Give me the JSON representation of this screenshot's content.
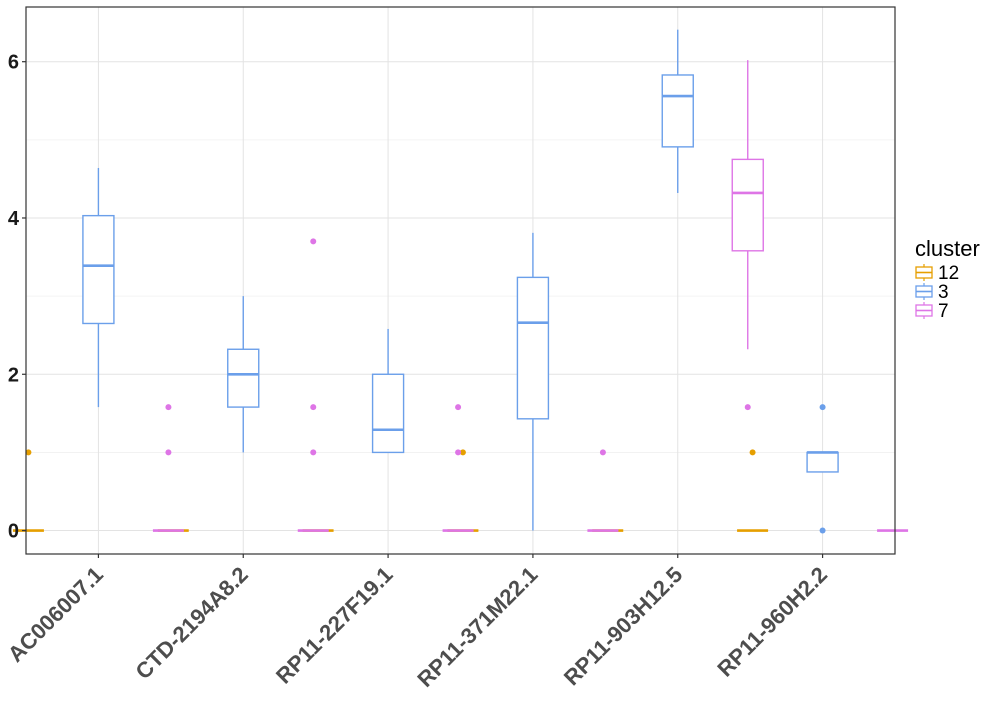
{
  "chart_data": {
    "type": "boxplot",
    "title": "",
    "xlabel": "",
    "ylabel": "",
    "ylim": [
      -0.3,
      6.7
    ],
    "y_ticks": [
      0,
      2,
      4,
      6
    ],
    "grid": true,
    "legend": {
      "title": "cluster",
      "position": "right"
    },
    "categories": [
      "AC006007.1",
      "CTD-2194A8.2",
      "RP11-227F19.1",
      "RP11-371M22.1",
      "RP11-903H12.5",
      "RP11-960H2.2"
    ],
    "series": [
      {
        "name": "12",
        "color": "#E69F00",
        "boxes": [
          {
            "category": "AC006007.1",
            "min": 0,
            "q1": 0,
            "median": 0,
            "q3": 0,
            "max": 0,
            "outliers": [
              1.0
            ]
          },
          {
            "category": "CTD-2194A8.2",
            "min": 0,
            "q1": 0,
            "median": 0,
            "q3": 0,
            "max": 0,
            "outliers": []
          },
          {
            "category": "RP11-227F19.1",
            "min": 0,
            "q1": 0,
            "median": 0,
            "q3": 0,
            "max": 0,
            "outliers": []
          },
          {
            "category": "RP11-371M22.1",
            "min": 0,
            "q1": 0,
            "median": 0,
            "q3": 0,
            "max": 0,
            "outliers": [
              1.0
            ]
          },
          {
            "category": "RP11-903H12.5",
            "min": 0,
            "q1": 0,
            "median": 0,
            "q3": 0,
            "max": 0,
            "outliers": []
          },
          {
            "category": "RP11-960H2.2",
            "min": 0,
            "q1": 0,
            "median": 0,
            "q3": 0,
            "max": 0,
            "outliers": [
              1.0
            ]
          }
        ]
      },
      {
        "name": "3",
        "color": "#6B9FEA",
        "boxes": [
          {
            "category": "AC006007.1",
            "min": 1.58,
            "q1": 2.65,
            "median": 3.39,
            "q3": 4.03,
            "max": 4.64,
            "outliers": []
          },
          {
            "category": "CTD-2194A8.2",
            "min": 1.0,
            "q1": 1.58,
            "median": 2.0,
            "q3": 2.32,
            "max": 3.0,
            "outliers": []
          },
          {
            "category": "RP11-227F19.1",
            "min": 1.0,
            "q1": 1.0,
            "median": 1.29,
            "q3": 2.0,
            "max": 2.58,
            "outliers": []
          },
          {
            "category": "RP11-371M22.1",
            "min": 0,
            "q1": 1.43,
            "median": 2.66,
            "q3": 3.24,
            "max": 3.81,
            "outliers": []
          },
          {
            "category": "RP11-903H12.5",
            "min": 4.32,
            "q1": 4.91,
            "median": 5.56,
            "q3": 5.83,
            "max": 6.41,
            "outliers": []
          },
          {
            "category": "RP11-960H2.2",
            "min": 0.75,
            "q1": 0.75,
            "median": 1.0,
            "q3": 1.0,
            "max": 1.0,
            "outliers": [
              0,
              1.58
            ]
          }
        ]
      },
      {
        "name": "7",
        "color": "#DE75E6",
        "boxes": [
          {
            "category": "AC006007.1",
            "min": 0,
            "q1": 0,
            "median": 0,
            "q3": 0,
            "max": 0,
            "outliers": [
              1.0,
              1.58
            ]
          },
          {
            "category": "CTD-2194A8.2",
            "min": 0,
            "q1": 0,
            "median": 0,
            "q3": 0,
            "max": 0,
            "outliers": [
              1.0,
              1.58,
              3.7
            ]
          },
          {
            "category": "RP11-227F19.1",
            "min": 0,
            "q1": 0,
            "median": 0,
            "q3": 0,
            "max": 0,
            "outliers": [
              1.0,
              1.58
            ]
          },
          {
            "category": "RP11-371M22.1",
            "min": 0,
            "q1": 0,
            "median": 0,
            "q3": 0,
            "max": 0,
            "outliers": [
              1.0
            ]
          },
          {
            "category": "RP11-903H12.5",
            "min": 2.32,
            "q1": 3.58,
            "median": 4.32,
            "q3": 4.75,
            "max": 6.02,
            "outliers": [
              1.58
            ]
          },
          {
            "category": "RP11-960H2.2",
            "min": 0,
            "q1": 0,
            "median": 0,
            "q3": 0,
            "max": 0,
            "outliers": []
          }
        ]
      }
    ]
  }
}
